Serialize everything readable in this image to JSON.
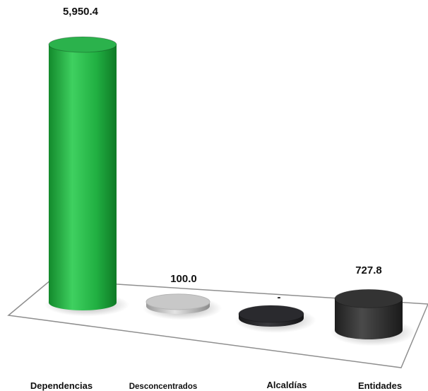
{
  "chart_data": {
    "type": "bar",
    "style": "3d-cylinder",
    "title": "",
    "xlabel": "",
    "ylabel": "",
    "categories": [
      "Dependencias",
      "Desconcentrados",
      "Alcaldías",
      "Entidades"
    ],
    "values": [
      5950.4,
      100.0,
      0,
      727.8
    ],
    "value_labels": [
      "5,950.4",
      "100.0",
      "-",
      "727.8"
    ],
    "colors": [
      "#2bb24c",
      "#c8c8c8",
      "#2a2a2e",
      "#333333"
    ],
    "ylim": [
      0,
      5950.4
    ],
    "grid": false,
    "legend": "none"
  }
}
